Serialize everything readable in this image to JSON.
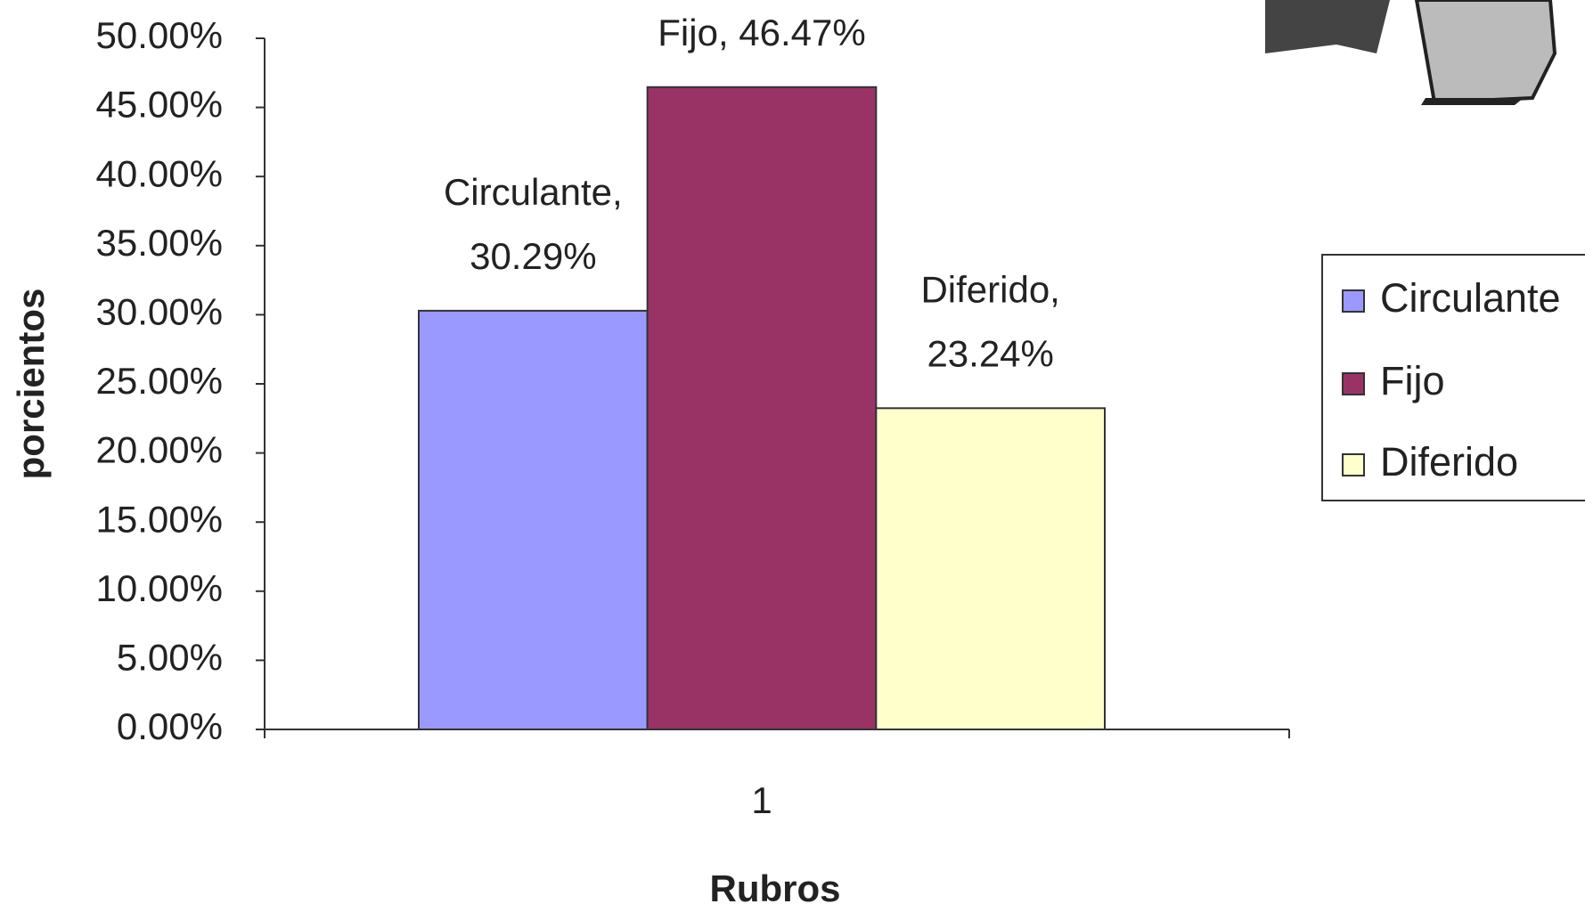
{
  "chart_data": {
    "type": "bar",
    "categories": [
      "1"
    ],
    "x_label": "Rubros",
    "y_label": "porcientos",
    "series": [
      {
        "name": "Circulante",
        "color": "#9999ff",
        "values": [
          30.29
        ],
        "value_labels": [
          "Circulante, 30.29%"
        ]
      },
      {
        "name": "Fijo",
        "color": "#993366",
        "values": [
          46.47
        ],
        "value_labels": [
          "Fijo, 46.47%"
        ]
      },
      {
        "name": "Diferido",
        "color": "#ffffcc",
        "values": [
          23.24
        ],
        "value_labels": [
          "Diferido, 23.24%"
        ]
      }
    ],
    "ylim": [
      0,
      50
    ],
    "yticks": [
      {
        "value": 0,
        "label": "0.00%"
      },
      {
        "value": 5,
        "label": "5.00%"
      },
      {
        "value": 10,
        "label": "10.00%"
      },
      {
        "value": 15,
        "label": "15.00%"
      },
      {
        "value": 20,
        "label": "20.00%"
      },
      {
        "value": 25,
        "label": "25.00%"
      },
      {
        "value": 30,
        "label": "30.00%"
      },
      {
        "value": 35,
        "label": "35.00%"
      },
      {
        "value": 40,
        "label": "40.00%"
      },
      {
        "value": 45,
        "label": "45.00%"
      },
      {
        "value": 50,
        "label": "50.00%"
      }
    ],
    "grid": false,
    "legend": "right"
  }
}
